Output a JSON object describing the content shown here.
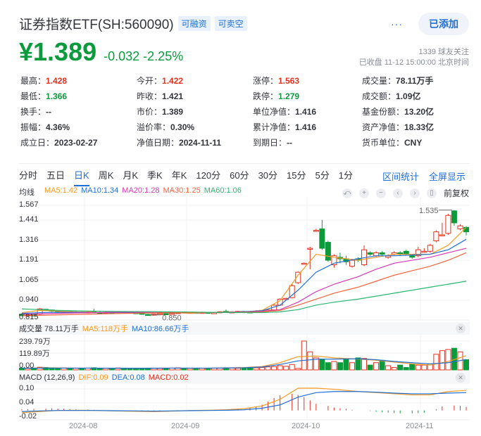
{
  "header": {
    "title": "证券指数ETF(SH:560090)",
    "badges": [
      "可融资",
      "可卖空"
    ],
    "more_label": "···",
    "add_button": "已添加",
    "price": "¥1.389",
    "change": "-0.032",
    "change_pct": "-2.25%",
    "followers": "1339 球友关注",
    "status_time": "已收盘 11-12 15:00:00 北京时间"
  },
  "stats": [
    {
      "label": "最高：",
      "value": "1.428",
      "tone": "up"
    },
    {
      "label": "今开：",
      "value": "1.422",
      "tone": "up"
    },
    {
      "label": "涨停：",
      "value": "1.563",
      "tone": "up"
    },
    {
      "label": "成交量：",
      "value": "78.11万手",
      "tone": ""
    },
    {
      "label": "最低：",
      "value": "1.366",
      "tone": "down"
    },
    {
      "label": "昨收：",
      "value": "1.421",
      "tone": ""
    },
    {
      "label": "跌停：",
      "value": "1.279",
      "tone": "down"
    },
    {
      "label": "成交额：",
      "value": "1.09亿",
      "tone": ""
    },
    {
      "label": "换手：",
      "value": "--",
      "tone": ""
    },
    {
      "label": "市价：",
      "value": "1.389",
      "tone": ""
    },
    {
      "label": "单位净值：",
      "value": "1.416",
      "tone": ""
    },
    {
      "label": "基金份额：",
      "value": "13.20亿",
      "tone": ""
    },
    {
      "label": "振幅：",
      "value": "4.36%",
      "tone": ""
    },
    {
      "label": "溢价率：",
      "value": "0.30%",
      "tone": ""
    },
    {
      "label": "累计净值：",
      "value": "1.416",
      "tone": ""
    },
    {
      "label": "资产净值：",
      "value": "18.33亿",
      "tone": ""
    },
    {
      "label": "成立日：",
      "value": "2023-02-27",
      "tone": ""
    },
    {
      "label": "净值日期：",
      "value": "2024-11-11",
      "tone": ""
    },
    {
      "label": "到期日：",
      "value": "--",
      "tone": ""
    },
    {
      "label": "货币单位：",
      "value": "CNY",
      "tone": ""
    }
  ],
  "tabs": [
    "分时",
    "五日",
    "日K",
    "周K",
    "月K",
    "季K",
    "年K",
    "120分",
    "60分",
    "30分",
    "15分",
    "5分",
    "1分"
  ],
  "active_tab": "日K",
  "tabs_right": [
    "区间统计",
    "全屏显示"
  ],
  "ma": {
    "label": "均线",
    "items": [
      {
        "text": "MA5:1.42",
        "color": "#f59a23"
      },
      {
        "text": "MA10:1.34",
        "color": "#1f6fd6"
      },
      {
        "text": "MA20:1.28",
        "color": "#d63ab5"
      },
      {
        "text": "MA30:1.25",
        "color": "#f2643c"
      },
      {
        "text": "MA60:1.06",
        "color": "#2bb673"
      }
    ]
  },
  "chart_tools": {
    "icons": [
      "undo-icon",
      "zoom-in-icon",
      "zoom-out-icon",
      "prev-icon",
      "next-icon",
      "bar-style-icon"
    ],
    "glyphs": [
      "⤺",
      "+",
      "−",
      "‹",
      "›",
      "▯"
    ],
    "adjust_label": "前复权"
  },
  "kline": {
    "y_ticks": [
      "1.567",
      "1.441",
      "1.316",
      "1.191",
      "1.065",
      "0.940",
      "0.815"
    ],
    "high_marker": "1.535",
    "low_marker": "0.850"
  },
  "volume": {
    "label": "成交量 78.11万手",
    "ma5": "MA5:118万手",
    "ma10": "MA10:86.66万手",
    "y_ticks": [
      "239.79万",
      "119.89万",
      "0.00"
    ]
  },
  "macd": {
    "label": "MACD (12,26,9)",
    "dif": "DIF:0.09",
    "dea": "DEA:0.08",
    "macd": "MACD:0.02",
    "y_ticks": [
      "0.10",
      "0.04",
      "-0.02"
    ]
  },
  "x_dates": [
    "2024-08",
    "2024-09",
    "2024-10",
    "2024-11"
  ],
  "colors": {
    "up": "#e5301e",
    "down": "#0b9a3c",
    "accent": "#1f6fd6"
  }
}
